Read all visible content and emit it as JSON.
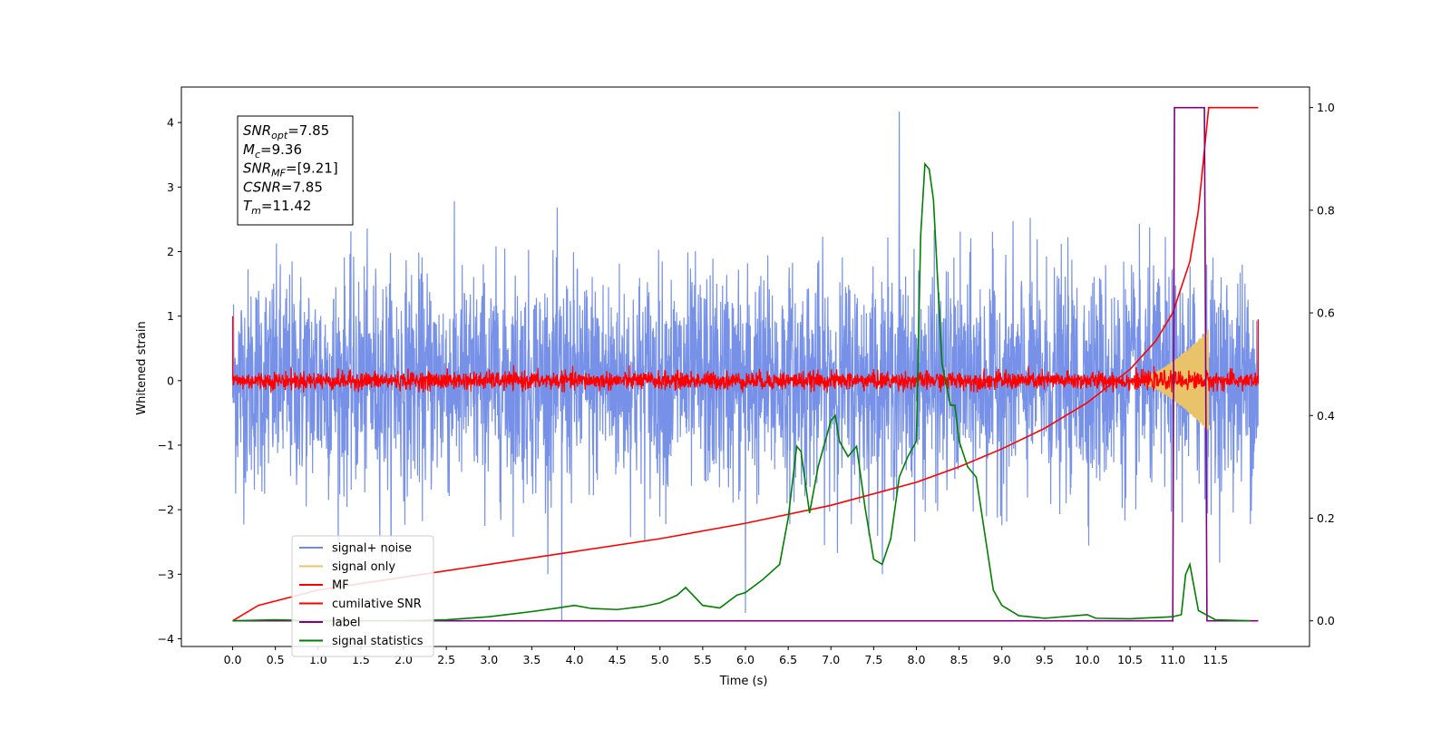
{
  "chart_data": {
    "type": "line",
    "xlabel": "Time (s)",
    "ylabel": "Whitened strain",
    "xlim": [
      -0.6,
      12.6
    ],
    "ylim": [
      -4.12,
      4.55
    ],
    "ylim_right": [
      -0.05,
      1.04
    ],
    "x_ticks": [
      0.0,
      0.5,
      1.0,
      1.5,
      2.0,
      2.5,
      3.0,
      3.5,
      4.0,
      4.5,
      5.0,
      5.5,
      6.0,
      6.5,
      7.0,
      7.5,
      8.0,
      8.5,
      9.0,
      9.5,
      10.0,
      10.5,
      11.0,
      11.5
    ],
    "x_tick_labels": [
      "0.0",
      "0.5",
      "1.0",
      "1.5",
      "2.0",
      "2.5",
      "3.0",
      "3.5",
      "4.0",
      "4.5",
      "5.0",
      "5.5",
      "6.0",
      "6.5",
      "7.0",
      "7.5",
      "8.0",
      "8.5",
      "9.0",
      "9.5",
      "10.0",
      "10.5",
      "11.0",
      "11.5"
    ],
    "y_ticks": [
      -4,
      -3,
      -2,
      -1,
      0,
      1,
      2,
      3,
      4
    ],
    "y_tick_labels": [
      "−4",
      "−3",
      "−2",
      "−1",
      "0",
      "1",
      "2",
      "3",
      "4"
    ],
    "y_right_ticks": [
      0.0,
      0.2,
      0.4,
      0.6,
      0.8,
      1.0
    ],
    "y_right_tick_labels": [
      "0.0",
      "0.2",
      "0.4",
      "0.6",
      "0.8",
      "1.0"
    ],
    "legend_position": "lower-left",
    "series": [
      {
        "name": "signal+ noise",
        "color": "#6f8be6",
        "axis": "left",
        "kind": "noise",
        "x_range": [
          0.0,
          12.0
        ],
        "std": 0.85,
        "spikes": [
          [
            7.8,
            4.17
          ],
          [
            3.85,
            -3.72
          ],
          [
            6.0,
            -3.6
          ]
        ]
      },
      {
        "name": "signal only",
        "color": "#e8c36a",
        "axis": "left",
        "kind": "chirp",
        "x_range": [
          10.5,
          11.42
        ],
        "peak_amplitude": 0.8
      },
      {
        "name": "MF",
        "color": "#ff0000",
        "axis": "left",
        "kind": "noise",
        "x_range": [
          0.0,
          12.0
        ],
        "std": 0.07,
        "edge_values": [
          1.0,
          0.95
        ]
      },
      {
        "name": "cumilative SNR",
        "color": "#ff0000",
        "axis": "right",
        "x": [
          0.0,
          0.3,
          1.0,
          2.0,
          3.0,
          4.0,
          5.0,
          6.0,
          7.0,
          8.0,
          8.5,
          9.0,
          9.5,
          10.0,
          10.5,
          10.8,
          11.0,
          11.2,
          11.3,
          11.42,
          11.5,
          12.0
        ],
        "y": [
          0.0,
          0.03,
          0.06,
          0.085,
          0.11,
          0.135,
          0.16,
          0.19,
          0.225,
          0.27,
          0.3,
          0.335,
          0.375,
          0.425,
          0.49,
          0.545,
          0.6,
          0.7,
          0.8,
          1.0,
          1.0,
          1.0
        ]
      },
      {
        "name": "label",
        "color": "#800080",
        "axis": "right",
        "x": [
          0.0,
          11.0,
          11.02,
          11.37,
          11.4,
          12.0
        ],
        "y": [
          0.0,
          0.0,
          1.0,
          1.0,
          0.0,
          0.0
        ]
      },
      {
        "name": "signal statistics",
        "color": "#008000",
        "axis": "right",
        "x": [
          0.0,
          0.5,
          1.0,
          1.5,
          2.0,
          2.5,
          3.0,
          3.2,
          3.5,
          3.8,
          4.0,
          4.2,
          4.5,
          4.8,
          5.0,
          5.2,
          5.3,
          5.5,
          5.7,
          5.9,
          6.0,
          6.2,
          6.4,
          6.5,
          6.6,
          6.65,
          6.75,
          6.85,
          7.0,
          7.05,
          7.1,
          7.2,
          7.3,
          7.4,
          7.5,
          7.6,
          7.7,
          7.8,
          7.9,
          8.0,
          8.05,
          8.1,
          8.15,
          8.2,
          8.3,
          8.4,
          8.45,
          8.5,
          8.6,
          8.7,
          8.8,
          8.9,
          9.0,
          9.2,
          9.5,
          10.0,
          10.1,
          10.5,
          11.0,
          11.1,
          11.15,
          11.2,
          11.3,
          11.5,
          11.9
        ],
        "y": [
          0.0,
          0.002,
          0.0,
          0.0,
          0.0,
          0.002,
          0.008,
          0.012,
          0.018,
          0.025,
          0.03,
          0.024,
          0.022,
          0.028,
          0.035,
          0.05,
          0.065,
          0.03,
          0.025,
          0.05,
          0.055,
          0.08,
          0.11,
          0.2,
          0.34,
          0.33,
          0.21,
          0.3,
          0.39,
          0.4,
          0.35,
          0.32,
          0.34,
          0.22,
          0.12,
          0.11,
          0.16,
          0.28,
          0.32,
          0.35,
          0.75,
          0.89,
          0.88,
          0.82,
          0.5,
          0.42,
          0.42,
          0.35,
          0.3,
          0.28,
          0.17,
          0.06,
          0.03,
          0.01,
          0.005,
          0.012,
          0.005,
          0.004,
          0.008,
          0.012,
          0.09,
          0.11,
          0.02,
          0.002,
          0.0
        ]
      }
    ],
    "annotations": [
      {
        "base": "SNR",
        "sub": "opt",
        "value": "=7.85"
      },
      {
        "base": "M",
        "sub": "c",
        "value": "=9.36"
      },
      {
        "base": "SNR",
        "sub": "MF",
        "value": "=[9.21]"
      },
      {
        "base": "CSNR",
        "sub": "",
        "value": "=7.85"
      },
      {
        "base": "T",
        "sub": "m",
        "value": "=11.42"
      }
    ]
  }
}
